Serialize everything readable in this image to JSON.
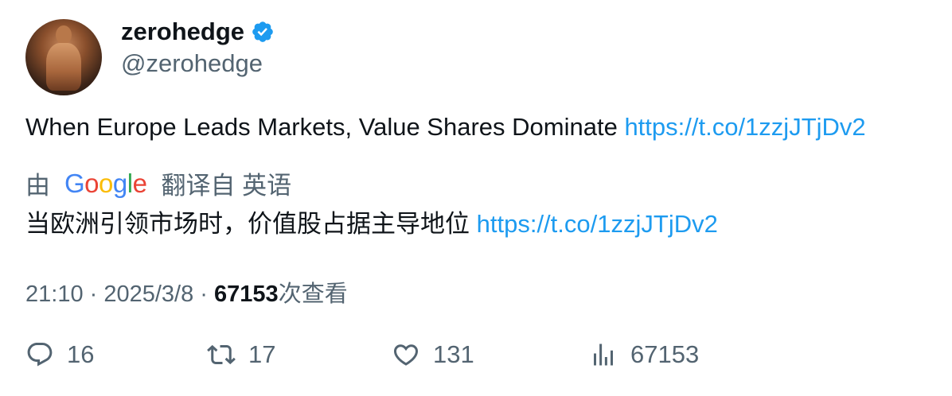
{
  "author": {
    "display_name": "zerohedge",
    "handle": "@zerohedge"
  },
  "tweet": {
    "text": "When Europe Leads Markets, Value Shares Dominate ",
    "link": "https://t.co/1zzjJTjDv2"
  },
  "translation": {
    "by_label": "由",
    "provider": "Google",
    "from_label": "翻译自 英语",
    "text": "当欧洲引领市场时，价值股占据主导地位 ",
    "link": "https://t.co/1zzjJTjDv2"
  },
  "meta": {
    "time": "21:10",
    "separator": " · ",
    "date": "2025/3/8",
    "views_count": "67153",
    "views_label": "次查看"
  },
  "actions": {
    "replies": "16",
    "reposts": "17",
    "likes": "131",
    "views": "67153"
  },
  "colors": {
    "link": "#1d9bf0",
    "verified": "#1d9bf0",
    "secondary_text": "#536471"
  }
}
